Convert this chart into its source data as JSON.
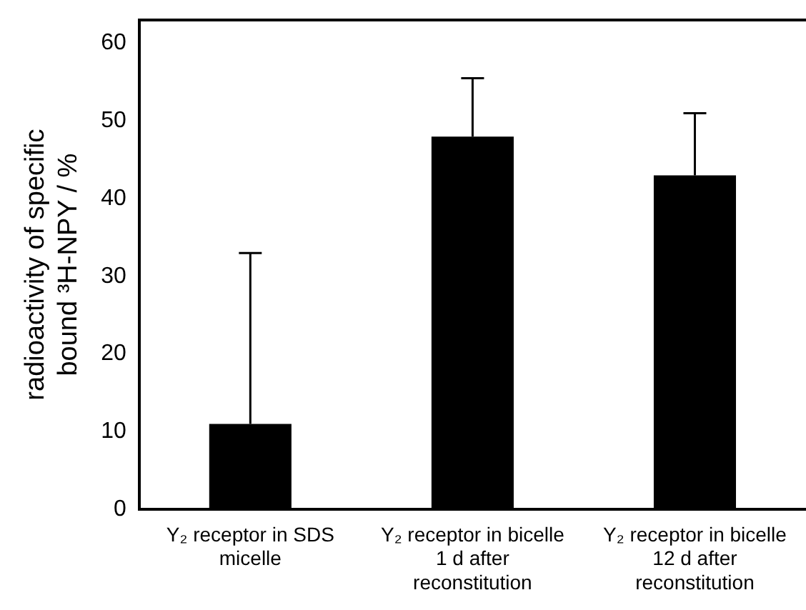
{
  "chart_data": {
    "type": "bar",
    "ylabel": "radioactivity of specific bound ³H-NPY / %",
    "categories": [
      "Y₂ receptor in SDS micelle",
      "Y₂ receptor in bicelle 1 d after reconstitution",
      "Y₂ receptor in bicelle 12 d after reconstitution"
    ],
    "values": [
      11,
      48,
      43
    ],
    "errors": [
      [
        11,
        33
      ],
      [
        48,
        55.5
      ],
      [
        43,
        51
      ]
    ],
    "color": "#000000",
    "ylim": [
      0,
      63
    ],
    "yticks": [
      0,
      10,
      20,
      30,
      40,
      50,
      60
    ],
    "grid": false,
    "legend": false
  }
}
